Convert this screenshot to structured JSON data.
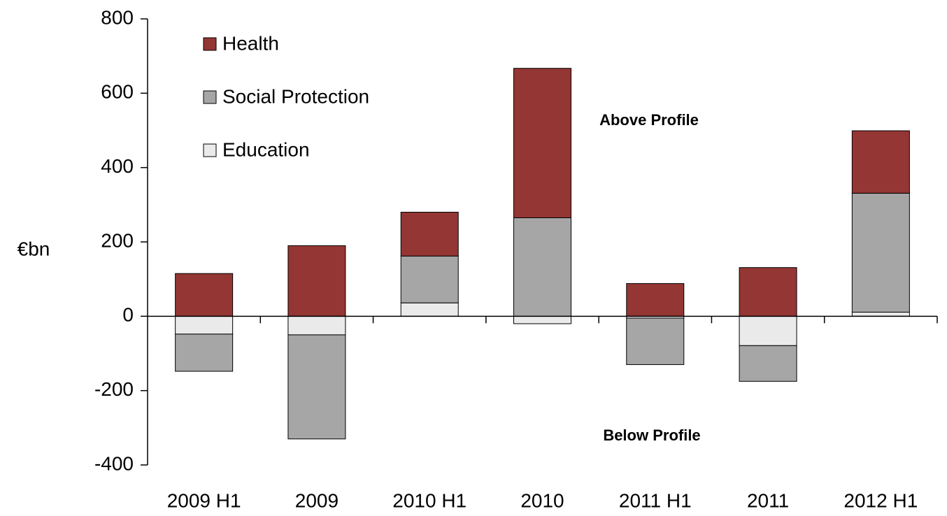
{
  "chart_data": {
    "type": "bar",
    "stacked": true,
    "y_label": "€bn",
    "categories": [
      "2009 H1",
      "2009",
      "2010 H1",
      "2010",
      "2011 H1",
      "2011",
      "2012 H1"
    ],
    "series": [
      {
        "name": "Education",
        "color": "#eaeaea",
        "values": [
          -48,
          -50,
          36,
          -20,
          -5,
          -79,
          11
        ]
      },
      {
        "name": "Social Protection",
        "color": "#a6a6a6",
        "values": [
          -100,
          -280,
          126,
          265,
          -125,
          -96,
          320
        ]
      },
      {
        "name": "Health",
        "color": "#943634",
        "values": [
          115,
          190,
          118,
          402,
          88,
          131,
          168
        ]
      }
    ],
    "ylim": [
      -400,
      800
    ],
    "yticks": [
      -400,
      -200,
      0,
      200,
      400,
      600,
      800
    ],
    "annotations": [
      "Above Profile",
      "Below Profile"
    ],
    "legend": "upper left",
    "grid": false
  }
}
